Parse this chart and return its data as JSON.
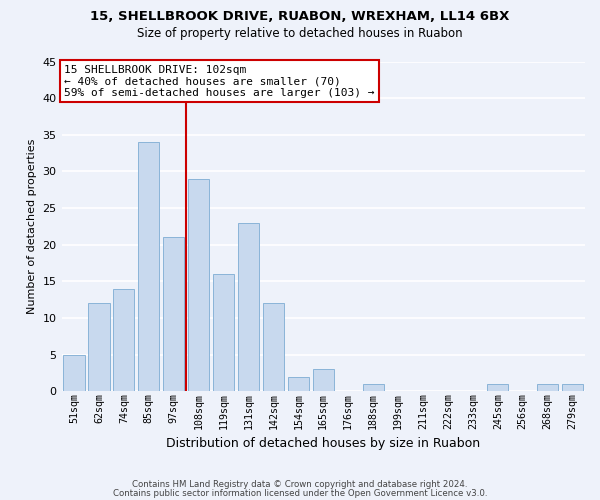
{
  "title1": "15, SHELLBROOK DRIVE, RUABON, WREXHAM, LL14 6BX",
  "title2": "Size of property relative to detached houses in Ruabon",
  "xlabel": "Distribution of detached houses by size in Ruabon",
  "ylabel": "Number of detached properties",
  "bar_labels": [
    "51sqm",
    "62sqm",
    "74sqm",
    "85sqm",
    "97sqm",
    "108sqm",
    "119sqm",
    "131sqm",
    "142sqm",
    "154sqm",
    "165sqm",
    "176sqm",
    "188sqm",
    "199sqm",
    "211sqm",
    "222sqm",
    "233sqm",
    "245sqm",
    "256sqm",
    "268sqm",
    "279sqm"
  ],
  "bar_heights": [
    5,
    12,
    14,
    34,
    21,
    29,
    16,
    23,
    12,
    2,
    3,
    0,
    1,
    0,
    0,
    0,
    0,
    1,
    0,
    1,
    1
  ],
  "bar_color": "#c8d9ee",
  "bar_edge_color": "#8ab4d8",
  "vline_x": 4.5,
  "vline_color": "#cc0000",
  "annotation_title": "15 SHELLBROOK DRIVE: 102sqm",
  "annotation_line1": "← 40% of detached houses are smaller (70)",
  "annotation_line2": "59% of semi-detached houses are larger (103) →",
  "annotation_box_color": "#ffffff",
  "annotation_box_edge": "#cc0000",
  "ylim": [
    0,
    45
  ],
  "yticks": [
    0,
    5,
    10,
    15,
    20,
    25,
    30,
    35,
    40,
    45
  ],
  "footer1": "Contains HM Land Registry data © Crown copyright and database right 2024.",
  "footer2": "Contains public sector information licensed under the Open Government Licence v3.0.",
  "bg_color": "#eef2fa",
  "grid_color": "#ffffff"
}
